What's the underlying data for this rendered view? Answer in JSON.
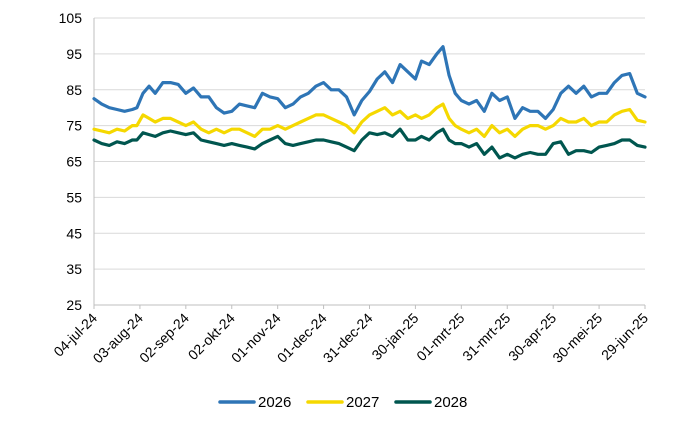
{
  "chart_data": {
    "type": "line",
    "title": "",
    "xlabel": "",
    "ylabel": "",
    "ylim": [
      25,
      105
    ],
    "yticks": [
      25,
      35,
      45,
      55,
      65,
      75,
      85,
      95,
      105
    ],
    "x_date_range": [
      "2024-07-04",
      "2025-06-29"
    ],
    "xticks": [
      {
        "date": "2024-07-04",
        "label": "04-jul-24"
      },
      {
        "date": "2024-08-03",
        "label": "03-aug-24"
      },
      {
        "date": "2024-09-02",
        "label": "02-sep-24"
      },
      {
        "date": "2024-10-02",
        "label": "02-okt-24"
      },
      {
        "date": "2024-11-01",
        "label": "01-nov-24"
      },
      {
        "date": "2024-12-01",
        "label": "01-dec-24"
      },
      {
        "date": "2024-12-31",
        "label": "31-dec-24"
      },
      {
        "date": "2025-01-30",
        "label": "30-jan-25"
      },
      {
        "date": "2025-03-01",
        "label": "01-mrt-25"
      },
      {
        "date": "2025-03-31",
        "label": "31-mrt-25"
      },
      {
        "date": "2025-04-30",
        "label": "30-apr-25"
      },
      {
        "date": "2025-05-30",
        "label": "30-mei-25"
      },
      {
        "date": "2025-06-29",
        "label": "29-jun-25"
      }
    ],
    "grid": true,
    "legend_position": "bottom",
    "series": [
      {
        "name": "2026",
        "color": "#2e75b6",
        "points": [
          [
            "2024-07-04",
            82.5
          ],
          [
            "2024-07-09",
            81
          ],
          [
            "2024-07-14",
            80
          ],
          [
            "2024-07-19",
            79.5
          ],
          [
            "2024-07-24",
            79
          ],
          [
            "2024-07-29",
            79.5
          ],
          [
            "2024-08-01",
            80
          ],
          [
            "2024-08-05",
            84
          ],
          [
            "2024-08-09",
            86
          ],
          [
            "2024-08-13",
            84
          ],
          [
            "2024-08-18",
            87
          ],
          [
            "2024-08-23",
            87
          ],
          [
            "2024-08-28",
            86.5
          ],
          [
            "2024-09-02",
            84
          ],
          [
            "2024-09-07",
            85.5
          ],
          [
            "2024-09-12",
            83
          ],
          [
            "2024-09-17",
            83
          ],
          [
            "2024-09-22",
            80
          ],
          [
            "2024-09-27",
            78.5
          ],
          [
            "2024-10-02",
            79
          ],
          [
            "2024-10-07",
            81
          ],
          [
            "2024-10-12",
            80.5
          ],
          [
            "2024-10-17",
            80
          ],
          [
            "2024-10-22",
            84
          ],
          [
            "2024-10-27",
            83
          ],
          [
            "2024-11-01",
            82.5
          ],
          [
            "2024-11-06",
            80
          ],
          [
            "2024-11-11",
            81
          ],
          [
            "2024-11-16",
            83
          ],
          [
            "2024-11-21",
            84
          ],
          [
            "2024-11-26",
            86
          ],
          [
            "2024-12-01",
            87
          ],
          [
            "2024-12-06",
            85
          ],
          [
            "2024-12-11",
            85
          ],
          [
            "2024-12-16",
            83
          ],
          [
            "2024-12-21",
            78
          ],
          [
            "2024-12-26",
            82
          ],
          [
            "2024-12-31",
            84.5
          ],
          [
            "2025-01-05",
            88
          ],
          [
            "2025-01-10",
            90
          ],
          [
            "2025-01-15",
            87
          ],
          [
            "2025-01-20",
            92
          ],
          [
            "2025-01-25",
            90
          ],
          [
            "2025-01-30",
            88
          ],
          [
            "2025-02-03",
            93
          ],
          [
            "2025-02-08",
            92
          ],
          [
            "2025-02-13",
            95
          ],
          [
            "2025-02-17",
            97
          ],
          [
            "2025-02-21",
            89
          ],
          [
            "2025-02-25",
            84
          ],
          [
            "2025-03-01",
            82
          ],
          [
            "2025-03-06",
            81
          ],
          [
            "2025-03-11",
            82
          ],
          [
            "2025-03-16",
            79
          ],
          [
            "2025-03-21",
            84
          ],
          [
            "2025-03-26",
            82
          ],
          [
            "2025-03-31",
            83
          ],
          [
            "2025-04-05",
            77
          ],
          [
            "2025-04-10",
            80
          ],
          [
            "2025-04-15",
            79
          ],
          [
            "2025-04-20",
            79
          ],
          [
            "2025-04-25",
            77
          ],
          [
            "2025-04-30",
            79.5
          ],
          [
            "2025-05-05",
            84
          ],
          [
            "2025-05-10",
            86
          ],
          [
            "2025-05-15",
            84
          ],
          [
            "2025-05-20",
            86
          ],
          [
            "2025-05-25",
            83
          ],
          [
            "2025-05-30",
            84
          ],
          [
            "2025-06-04",
            84
          ],
          [
            "2025-06-09",
            87
          ],
          [
            "2025-06-14",
            89
          ],
          [
            "2025-06-19",
            89.5
          ],
          [
            "2025-06-24",
            84
          ],
          [
            "2025-06-29",
            83
          ]
        ]
      },
      {
        "name": "2027",
        "color": "#f5d800",
        "points": [
          [
            "2024-07-04",
            74
          ],
          [
            "2024-07-09",
            73.5
          ],
          [
            "2024-07-14",
            73
          ],
          [
            "2024-07-19",
            74
          ],
          [
            "2024-07-24",
            73.5
          ],
          [
            "2024-07-29",
            75
          ],
          [
            "2024-08-01",
            75
          ],
          [
            "2024-08-05",
            78
          ],
          [
            "2024-08-09",
            77
          ],
          [
            "2024-08-13",
            76
          ],
          [
            "2024-08-18",
            77
          ],
          [
            "2024-08-23",
            77
          ],
          [
            "2024-08-28",
            76
          ],
          [
            "2024-09-02",
            75
          ],
          [
            "2024-09-07",
            76
          ],
          [
            "2024-09-12",
            74
          ],
          [
            "2024-09-17",
            73
          ],
          [
            "2024-09-22",
            74
          ],
          [
            "2024-09-27",
            73
          ],
          [
            "2024-10-02",
            74
          ],
          [
            "2024-10-07",
            74
          ],
          [
            "2024-10-12",
            73
          ],
          [
            "2024-10-17",
            72
          ],
          [
            "2024-10-22",
            74
          ],
          [
            "2024-10-27",
            74
          ],
          [
            "2024-11-01",
            75
          ],
          [
            "2024-11-06",
            74
          ],
          [
            "2024-11-11",
            75
          ],
          [
            "2024-11-16",
            76
          ],
          [
            "2024-11-21",
            77
          ],
          [
            "2024-11-26",
            78
          ],
          [
            "2024-12-01",
            78
          ],
          [
            "2024-12-06",
            77
          ],
          [
            "2024-12-11",
            76
          ],
          [
            "2024-12-16",
            75
          ],
          [
            "2024-12-21",
            73
          ],
          [
            "2024-12-26",
            76
          ],
          [
            "2024-12-31",
            78
          ],
          [
            "2025-01-05",
            79
          ],
          [
            "2025-01-10",
            80
          ],
          [
            "2025-01-15",
            78
          ],
          [
            "2025-01-20",
            79
          ],
          [
            "2025-01-25",
            77
          ],
          [
            "2025-01-30",
            78
          ],
          [
            "2025-02-03",
            77
          ],
          [
            "2025-02-08",
            78
          ],
          [
            "2025-02-13",
            80
          ],
          [
            "2025-02-17",
            81
          ],
          [
            "2025-02-21",
            77
          ],
          [
            "2025-02-25",
            75
          ],
          [
            "2025-03-01",
            74
          ],
          [
            "2025-03-06",
            73
          ],
          [
            "2025-03-11",
            74
          ],
          [
            "2025-03-16",
            72
          ],
          [
            "2025-03-21",
            75
          ],
          [
            "2025-03-26",
            73
          ],
          [
            "2025-03-31",
            74
          ],
          [
            "2025-04-05",
            72
          ],
          [
            "2025-04-10",
            74
          ],
          [
            "2025-04-15",
            75
          ],
          [
            "2025-04-20",
            75
          ],
          [
            "2025-04-25",
            74
          ],
          [
            "2025-04-30",
            75
          ],
          [
            "2025-05-05",
            77
          ],
          [
            "2025-05-10",
            76
          ],
          [
            "2025-05-15",
            76
          ],
          [
            "2025-05-20",
            77
          ],
          [
            "2025-05-25",
            75
          ],
          [
            "2025-05-30",
            76
          ],
          [
            "2025-06-04",
            76
          ],
          [
            "2025-06-09",
            78
          ],
          [
            "2025-06-14",
            79
          ],
          [
            "2025-06-19",
            79.5
          ],
          [
            "2025-06-24",
            76.5
          ],
          [
            "2025-06-29",
            76
          ]
        ]
      },
      {
        "name": "2028",
        "color": "#00564f",
        "points": [
          [
            "2024-07-04",
            71
          ],
          [
            "2024-07-09",
            70
          ],
          [
            "2024-07-14",
            69.5
          ],
          [
            "2024-07-19",
            70.5
          ],
          [
            "2024-07-24",
            70
          ],
          [
            "2024-07-29",
            71
          ],
          [
            "2024-08-01",
            71
          ],
          [
            "2024-08-05",
            73
          ],
          [
            "2024-08-09",
            72.5
          ],
          [
            "2024-08-13",
            72
          ],
          [
            "2024-08-18",
            73
          ],
          [
            "2024-08-23",
            73.5
          ],
          [
            "2024-08-28",
            73
          ],
          [
            "2024-09-02",
            72.5
          ],
          [
            "2024-09-07",
            73
          ],
          [
            "2024-09-12",
            71
          ],
          [
            "2024-09-17",
            70.5
          ],
          [
            "2024-09-22",
            70
          ],
          [
            "2024-09-27",
            69.5
          ],
          [
            "2024-10-02",
            70
          ],
          [
            "2024-10-07",
            69.5
          ],
          [
            "2024-10-12",
            69
          ],
          [
            "2024-10-17",
            68.5
          ],
          [
            "2024-10-22",
            70
          ],
          [
            "2024-10-27",
            71
          ],
          [
            "2024-11-01",
            72
          ],
          [
            "2024-11-06",
            70
          ],
          [
            "2024-11-11",
            69.5
          ],
          [
            "2024-11-16",
            70
          ],
          [
            "2024-11-21",
            70.5
          ],
          [
            "2024-11-26",
            71
          ],
          [
            "2024-12-01",
            71
          ],
          [
            "2024-12-06",
            70.5
          ],
          [
            "2024-12-11",
            70
          ],
          [
            "2024-12-16",
            69
          ],
          [
            "2024-12-21",
            68
          ],
          [
            "2024-12-26",
            71
          ],
          [
            "2024-12-31",
            73
          ],
          [
            "2025-01-05",
            72.5
          ],
          [
            "2025-01-10",
            73
          ],
          [
            "2025-01-15",
            72
          ],
          [
            "2025-01-20",
            74
          ],
          [
            "2025-01-25",
            71
          ],
          [
            "2025-01-30",
            71
          ],
          [
            "2025-02-03",
            72
          ],
          [
            "2025-02-08",
            71
          ],
          [
            "2025-02-13",
            73
          ],
          [
            "2025-02-17",
            74
          ],
          [
            "2025-02-21",
            71
          ],
          [
            "2025-02-25",
            70
          ],
          [
            "2025-03-01",
            70
          ],
          [
            "2025-03-06",
            69
          ],
          [
            "2025-03-11",
            70
          ],
          [
            "2025-03-16",
            67
          ],
          [
            "2025-03-21",
            69
          ],
          [
            "2025-03-26",
            66
          ],
          [
            "2025-03-31",
            67
          ],
          [
            "2025-04-05",
            66
          ],
          [
            "2025-04-10",
            67
          ],
          [
            "2025-04-15",
            67.5
          ],
          [
            "2025-04-20",
            67
          ],
          [
            "2025-04-25",
            67
          ],
          [
            "2025-04-30",
            70
          ],
          [
            "2025-05-05",
            70.5
          ],
          [
            "2025-05-10",
            67
          ],
          [
            "2025-05-15",
            68
          ],
          [
            "2025-05-20",
            68
          ],
          [
            "2025-05-25",
            67.5
          ],
          [
            "2025-05-30",
            69
          ],
          [
            "2025-06-04",
            69.5
          ],
          [
            "2025-06-09",
            70
          ],
          [
            "2025-06-14",
            71
          ],
          [
            "2025-06-19",
            71
          ],
          [
            "2025-06-24",
            69.5
          ],
          [
            "2025-06-29",
            69
          ]
        ]
      }
    ]
  }
}
